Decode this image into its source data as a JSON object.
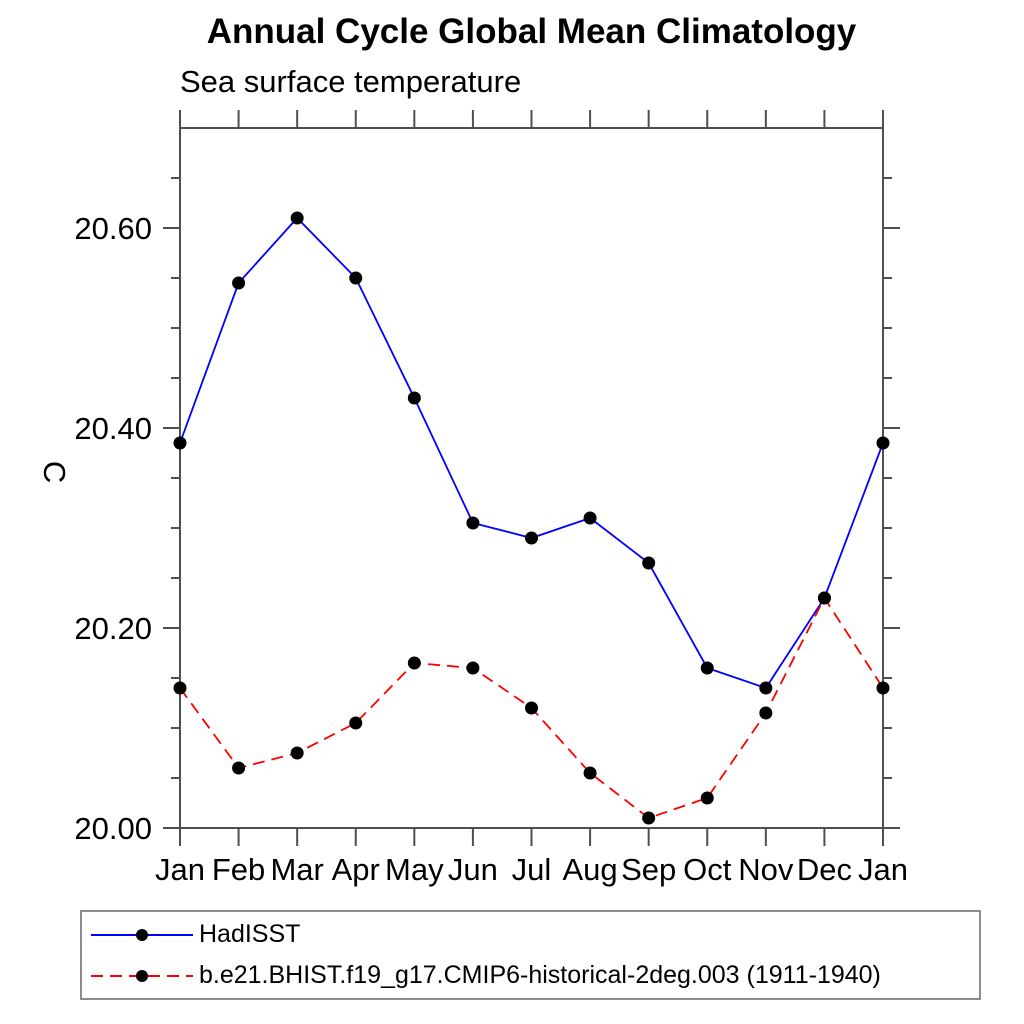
{
  "title": "Annual Cycle Global Mean Climatology",
  "subtitle": "Sea surface temperature",
  "legend": {
    "entries": [
      {
        "label": "HadISST"
      },
      {
        "label": "b.e21.BHIST.f19_g17.CMIP6-historical-2deg.003 (1911-1940)"
      }
    ]
  },
  "colors": {
    "axis": "#4f4f4f",
    "text": "#000000",
    "hadisst_line": "#0000ff",
    "model_line": "#ff0000",
    "marker": "#000000"
  },
  "chart_data": {
    "type": "line",
    "title": "Annual Cycle Global Mean Climatology",
    "subtitle": "Sea surface temperature",
    "xlabel": "",
    "ylabel": "C",
    "x_labels": [
      "Jan",
      "Feb",
      "Mar",
      "Apr",
      "May",
      "Jun",
      "Jul",
      "Aug",
      "Sep",
      "Oct",
      "Nov",
      "Dec",
      "Jan"
    ],
    "ylim": [
      20.0,
      20.7
    ],
    "ytick_major_values": [
      20.0,
      20.2,
      20.4,
      20.6
    ],
    "ytick_major_labels": [
      "20.00",
      "20.20",
      "20.40",
      "20.60"
    ],
    "ytick_minor_step": 0.05,
    "grid": false,
    "legend_position": "bottom-left",
    "series": [
      {
        "name": "HadISST",
        "color": "#0000ff",
        "line_style": "solid",
        "marker": "filled-circle",
        "marker_color": "#000000",
        "values": [
          20.385,
          20.545,
          20.61,
          20.55,
          20.43,
          20.305,
          20.29,
          20.31,
          20.265,
          20.16,
          20.14,
          20.23,
          20.385
        ]
      },
      {
        "name": "b.e21.BHIST.f19_g17.CMIP6-historical-2deg.003 (1911-1940)",
        "color": "#ff0000",
        "line_style": "dashed",
        "marker": "filled-circle",
        "marker_color": "#000000",
        "values": [
          20.14,
          20.06,
          20.075,
          20.105,
          20.165,
          20.16,
          20.12,
          20.055,
          20.01,
          20.03,
          20.115,
          20.23,
          20.14
        ]
      }
    ]
  }
}
